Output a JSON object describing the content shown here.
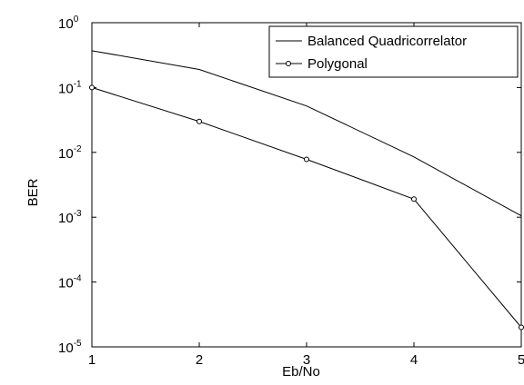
{
  "chart_data": {
    "type": "line",
    "title": "",
    "xlabel": "Eb/No",
    "ylabel": "BER",
    "x": [
      1,
      2,
      3,
      4,
      5
    ],
    "xlim": [
      1,
      5
    ],
    "ylim": [
      1e-05,
      1
    ],
    "yscale": "log",
    "grid": false,
    "legend_position": "top-right",
    "x_tick_labels": [
      "1",
      "2",
      "3",
      "4",
      "5"
    ],
    "y_tick_labels": [
      {
        "base": "10",
        "exp": "0"
      },
      {
        "base": "10",
        "exp": "-1"
      },
      {
        "base": "10",
        "exp": "-2"
      },
      {
        "base": "10",
        "exp": "-3"
      },
      {
        "base": "10",
        "exp": "-4"
      },
      {
        "base": "10",
        "exp": "-5"
      }
    ],
    "series": [
      {
        "name": "Balanced Quadricorrelator",
        "values": [
          0.37,
          0.19,
          0.052,
          0.0085,
          0.00105
        ],
        "marker": "none",
        "color": "#000000"
      },
      {
        "name": "Polygonal",
        "values": [
          0.1,
          0.03,
          0.0078,
          0.0019,
          2e-05
        ],
        "marker": "circle",
        "color": "#000000"
      }
    ]
  }
}
